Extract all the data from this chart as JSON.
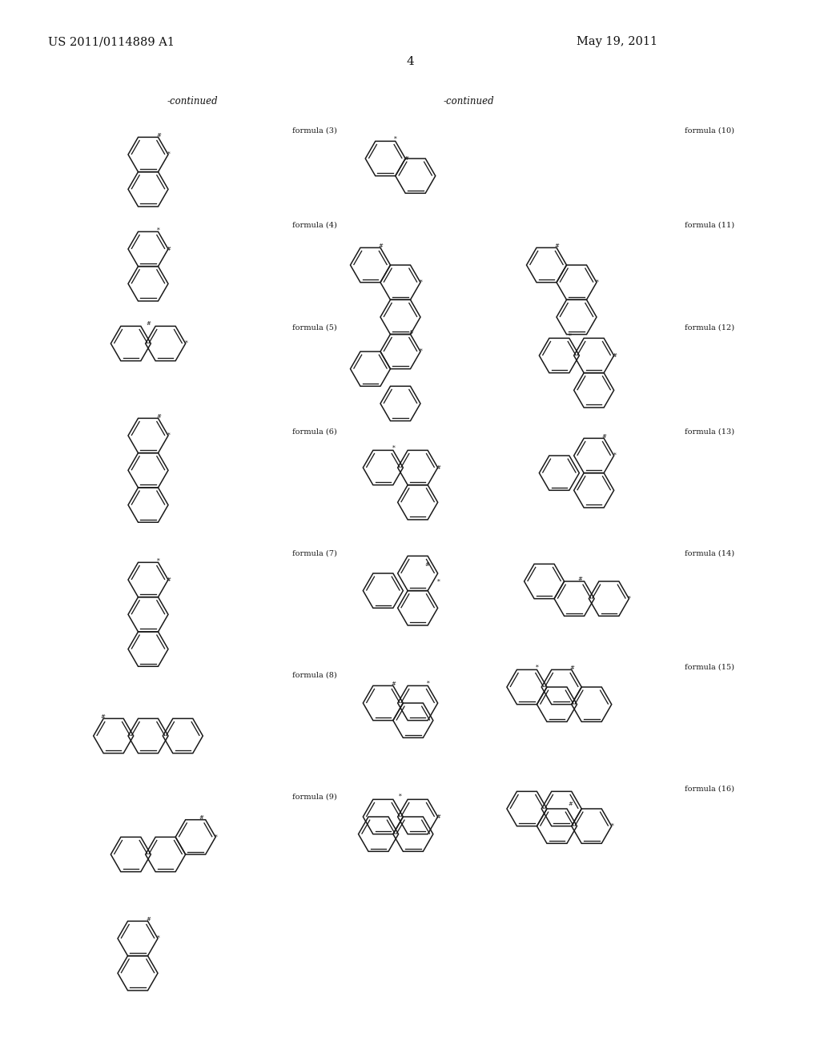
{
  "title_left": "US 2011/0114889 A1",
  "title_right": "May 19, 2011",
  "page_number": "4",
  "continued_left": "-continued",
  "continued_right": "-continued",
  "background_color": "#ffffff",
  "line_color": "#1a1a1a",
  "text_color": "#1a1a1a"
}
